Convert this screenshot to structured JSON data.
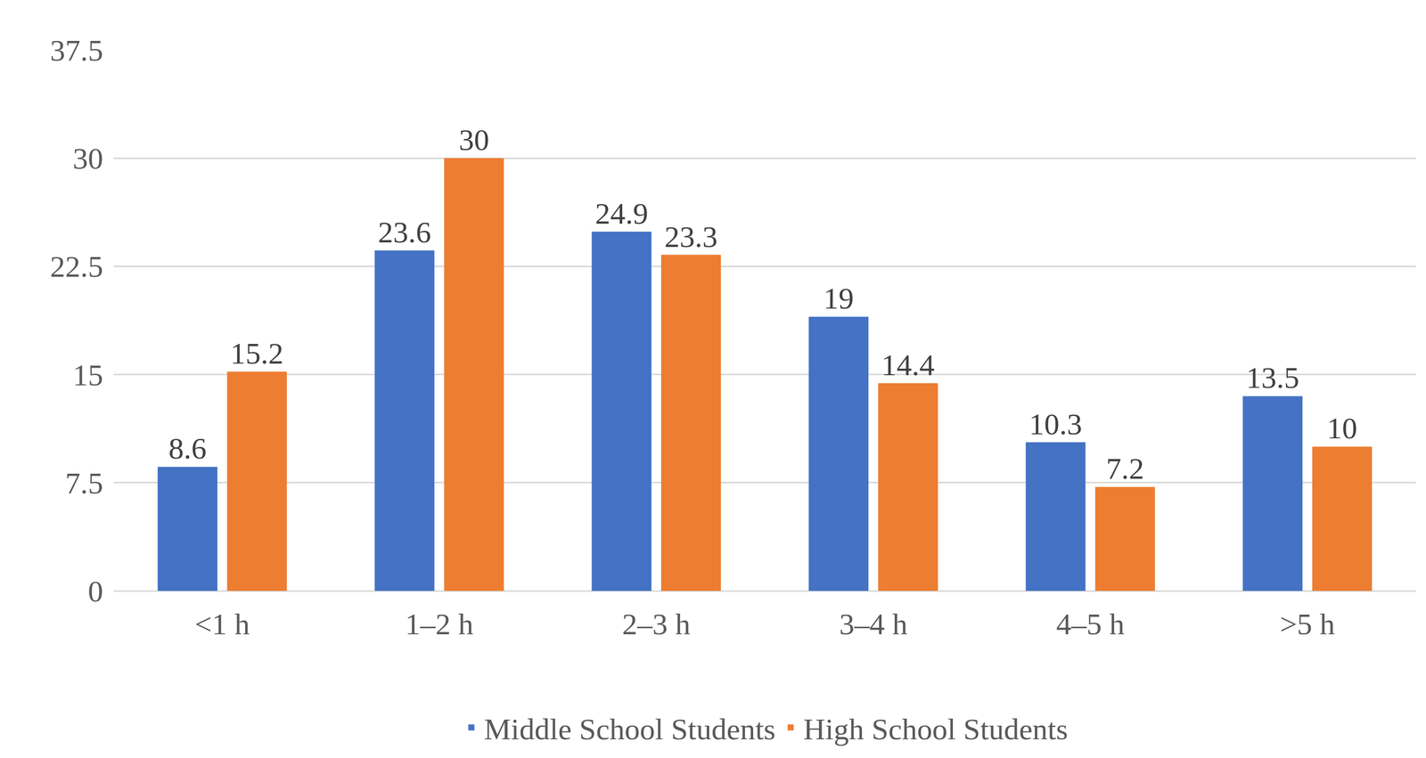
{
  "chart_data": {
    "type": "bar",
    "categories": [
      "<1 h",
      "1–2 h",
      "2–3 h",
      "3–4 h",
      "4–5 h",
      ">5 h"
    ],
    "series": [
      {
        "name": "Middle School Students",
        "color": "#4472c4",
        "values": [
          8.6,
          23.6,
          24.9,
          19,
          10.3,
          13.5
        ]
      },
      {
        "name": "High School Students",
        "color": "#ed7d31",
        "values": [
          15.2,
          30,
          23.3,
          14.4,
          7.2,
          10
        ]
      }
    ],
    "ylim": [
      0,
      37.5
    ],
    "yticks": [
      0,
      7.5,
      15,
      22.5,
      30,
      37.5
    ],
    "grid": true,
    "data_labels": true,
    "legend": "bottom"
  }
}
